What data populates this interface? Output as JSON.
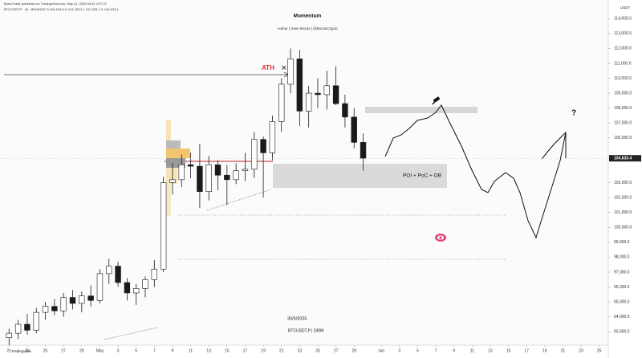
{
  "chart_data": {
    "type": "candlestick",
    "title": "Momentum",
    "subtitle": "Author | Sven Bozas | @BozasCrypto",
    "header": [
      "BravoTrade published on TradingView.com, May 31, 2025 05:42 UTC+3",
      "BTCUSDT.P · 4h · BINANCE  O 104,634.8 H 104,763.5 L 104,325.1 C 104,633.4"
    ],
    "y_unit": "USDT",
    "brand": "TradingView",
    "x": [
      0,
      1,
      2,
      3,
      4,
      5,
      6,
      7,
      8,
      9,
      10,
      11,
      12,
      13,
      14,
      15,
      16,
      17,
      18,
      19,
      20,
      21,
      22,
      23,
      24,
      25,
      26,
      27,
      28,
      29,
      30,
      31,
      32,
      33,
      34,
      35,
      36,
      37,
      38,
      39
    ],
    "open": [
      92600,
      92900,
      93500,
      93100,
      94300,
      94700,
      94400,
      95300,
      94900,
      95400,
      95100,
      96900,
      97400,
      96300,
      95600,
      95900,
      96500,
      97200,
      103000,
      103200,
      104200,
      104100,
      102400,
      104200,
      103500,
      103200,
      103800,
      103900,
      105900,
      105000,
      107100,
      109600,
      111300,
      107800,
      109000,
      108900,
      109500,
      108300,
      107400,
      105700
    ],
    "high": [
      93200,
      93800,
      94200,
      94600,
      95000,
      95200,
      95600,
      95800,
      95700,
      96100,
      97200,
      97900,
      97700,
      96600,
      96200,
      96700,
      97800,
      103400,
      104300,
      104900,
      105000,
      105600,
      104800,
      104500,
      104200,
      104300,
      105000,
      106400,
      106100,
      107500,
      110000,
      112000,
      111900,
      109500,
      110000,
      110500,
      110800,
      108900,
      108000,
      106300
    ],
    "low": [
      92100,
      92500,
      92800,
      92900,
      93800,
      94100,
      94000,
      94500,
      94300,
      94700,
      94900,
      96200,
      96000,
      95100,
      94800,
      95300,
      96000,
      97000,
      102200,
      102700,
      103300,
      101300,
      101800,
      102500,
      101500,
      102900,
      103100,
      103300,
      102000,
      104500,
      106400,
      109000,
      106800,
      106700,
      108000,
      107900,
      108200,
      106700,
      105300,
      103800
    ],
    "close": [
      92900,
      93500,
      93100,
      94300,
      94700,
      94400,
      95300,
      94900,
      95400,
      95100,
      96900,
      97400,
      96300,
      95600,
      95900,
      96500,
      97200,
      103000,
      103200,
      104200,
      104100,
      102400,
      104200,
      103500,
      103200,
      103800,
      103900,
      105900,
      105000,
      107100,
      109600,
      111300,
      107800,
      109000,
      108900,
      109500,
      108300,
      107400,
      105700,
      104633.4
    ],
    "up_color": "#ffffff",
    "down_color": "#1a1a1a",
    "wick_color": "#1a1a1a",
    "last_price": {
      "value": 104633.4,
      "label": "104,633.4"
    },
    "xlim": [
      -1,
      66
    ],
    "xticks": [
      {
        "value": 0,
        "label": "21"
      },
      {
        "value": 2,
        "label": "23"
      },
      {
        "value": 4,
        "label": "25"
      },
      {
        "value": 6,
        "label": "27"
      },
      {
        "value": 8,
        "label": "29"
      },
      {
        "value": 10,
        "label": "May"
      },
      {
        "value": 12,
        "label": "3"
      },
      {
        "value": 14,
        "label": "5"
      },
      {
        "value": 16,
        "label": "7"
      },
      {
        "value": 18,
        "label": "9"
      },
      {
        "value": 20,
        "label": "11"
      },
      {
        "value": 22,
        "label": "13"
      },
      {
        "value": 24,
        "label": "15"
      },
      {
        "value": 26,
        "label": "17"
      },
      {
        "value": 28,
        "label": "19"
      },
      {
        "value": 30,
        "label": "21"
      },
      {
        "value": 32,
        "label": "23"
      },
      {
        "value": 34,
        "label": "25"
      },
      {
        "value": 36,
        "label": "27"
      },
      {
        "value": 38,
        "label": "29"
      },
      {
        "value": 41,
        "label": "Jun"
      },
      {
        "value": 43,
        "label": "3"
      },
      {
        "value": 45,
        "label": "5"
      },
      {
        "value": 47,
        "label": "7"
      },
      {
        "value": 49,
        "label": "9"
      },
      {
        "value": 51,
        "label": "11"
      },
      {
        "value": 53,
        "label": "13"
      },
      {
        "value": 55,
        "label": "15"
      },
      {
        "value": 57,
        "label": "17"
      },
      {
        "value": 59,
        "label": "19"
      },
      {
        "value": 61,
        "label": "21"
      },
      {
        "value": 63,
        "label": "23"
      },
      {
        "value": 65,
        "label": "25"
      }
    ],
    "ylim": [
      92100,
      115250
    ],
    "yticks": [
      {
        "value": 93000,
        "label": "93,000.0"
      },
      {
        "value": 94000,
        "label": "94,000.0"
      },
      {
        "value": 95000,
        "label": "95,000.0"
      },
      {
        "value": 96000,
        "label": "96,000.0"
      },
      {
        "value": 97000,
        "label": "97,000.0"
      },
      {
        "value": 98000,
        "label": "98,000.0"
      },
      {
        "value": 99000,
        "label": "99,000.0"
      },
      {
        "value": 100000,
        "label": "100,000.0"
      },
      {
        "value": 101000,
        "label": "101,000.0"
      },
      {
        "value": 102000,
        "label": "102,000.0"
      },
      {
        "value": 103000,
        "label": "103,000.0"
      },
      {
        "value": 106000,
        "label": "106,000.0"
      },
      {
        "value": 107000,
        "label": "107,000.0"
      },
      {
        "value": 108000,
        "label": "108,000.0"
      },
      {
        "value": 109000,
        "label": "109,000.0"
      },
      {
        "value": 110000,
        "label": "110,000.0"
      },
      {
        "value": 111000,
        "label": "111,000.0"
      },
      {
        "value": 112000,
        "label": "112,000.0"
      },
      {
        "value": 113000,
        "label": "113,000.0"
      },
      {
        "value": 114000,
        "label": "114,000.0"
      }
    ],
    "annotations": [
      "ATH",
      "POI + PoC + OB",
      "30/5/2025",
      "BTCUSDT.P | 240M",
      "?"
    ]
  }
}
